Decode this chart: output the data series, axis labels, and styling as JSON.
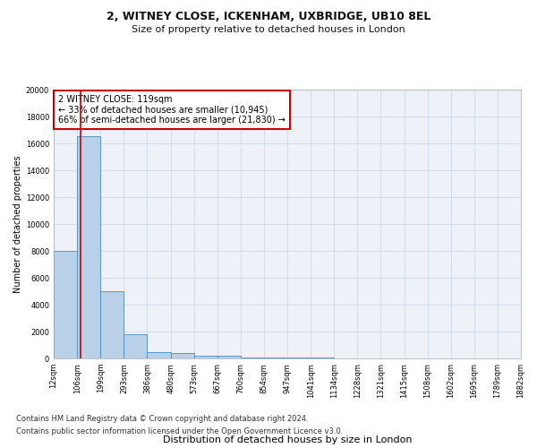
{
  "title": "2, WITNEY CLOSE, ICKENHAM, UXBRIDGE, UB10 8EL",
  "subtitle": "Size of property relative to detached houses in London",
  "xlabel": "Distribution of detached houses by size in London",
  "ylabel": "Number of detached properties",
  "footnote1": "Contains HM Land Registry data © Crown copyright and database right 2024.",
  "footnote2": "Contains public sector information licensed under the Open Government Licence v3.0.",
  "annotation_title": "2 WITNEY CLOSE: 119sqm",
  "annotation_line1": "← 33% of detached houses are smaller (10,945)",
  "annotation_line2": "66% of semi-detached houses are larger (21,830) →",
  "property_size": 119,
  "bar_left_edges": [
    12,
    106,
    199,
    293,
    386,
    480,
    573,
    667,
    760,
    854,
    947,
    1041,
    1134,
    1228,
    1321,
    1415,
    1508,
    1602,
    1695,
    1789
  ],
  "bar_right_edges": [
    106,
    199,
    293,
    386,
    480,
    573,
    667,
    760,
    854,
    947,
    1041,
    1134,
    1228,
    1321,
    1415,
    1508,
    1602,
    1695,
    1789,
    1882
  ],
  "bar_heights": [
    8000,
    16500,
    5000,
    1800,
    500,
    430,
    200,
    170,
    100,
    80,
    55,
    40,
    25,
    18,
    12,
    9,
    7,
    5,
    4,
    3
  ],
  "tick_labels": [
    "12sqm",
    "106sqm",
    "199sqm",
    "293sqm",
    "386sqm",
    "480sqm",
    "573sqm",
    "667sqm",
    "760sqm",
    "854sqm",
    "947sqm",
    "1041sqm",
    "1134sqm",
    "1228sqm",
    "1321sqm",
    "1415sqm",
    "1508sqm",
    "1602sqm",
    "1695sqm",
    "1789sqm",
    "1882sqm"
  ],
  "bar_facecolor": "#b8d0e8",
  "bar_edgecolor": "#4a8bbf",
  "bar_linewidth": 0.6,
  "redline_color": "#cc0000",
  "annotation_box_edgecolor": "#cc0000",
  "annotation_box_facecolor": "#ffffff",
  "grid_color": "#c8d4e4",
  "bg_color": "#eef2f8",
  "ylim": [
    0,
    20000
  ],
  "yticks": [
    0,
    2000,
    4000,
    6000,
    8000,
    10000,
    12000,
    14000,
    16000,
    18000,
    20000
  ],
  "title_fontsize": 9,
  "subtitle_fontsize": 8,
  "xlabel_fontsize": 8,
  "ylabel_fontsize": 7,
  "tick_fontsize": 6,
  "annotation_fontsize": 7,
  "footnote_fontsize": 6
}
